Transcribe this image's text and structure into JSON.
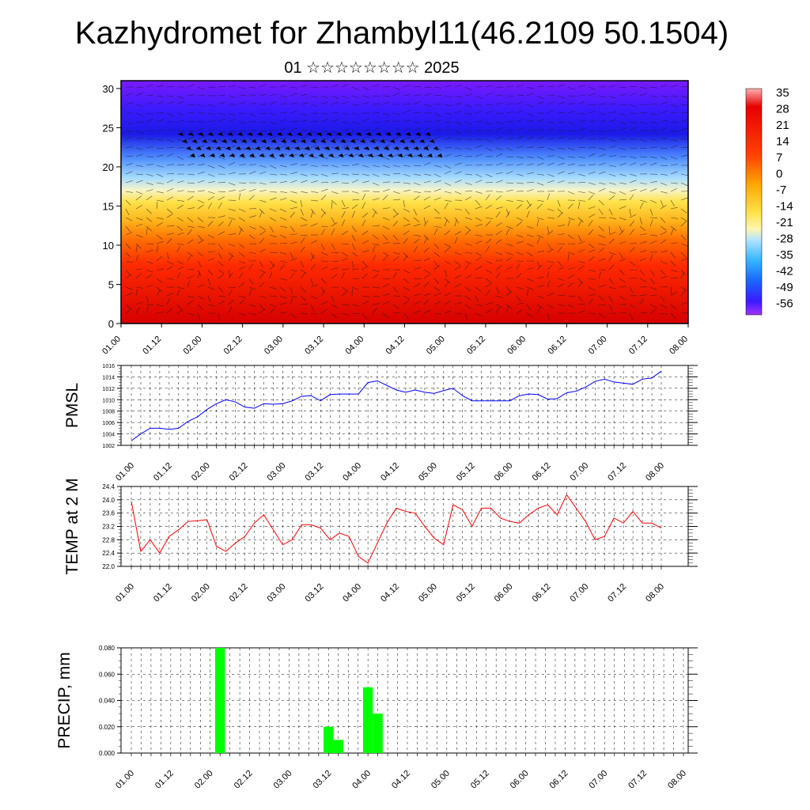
{
  "title": "Kazhydromet for Zhambyl11(46.2109 50.1504)",
  "subtitle": "01 ☆☆☆☆☆☆☆☆ 2025",
  "chart_data": [
    {
      "type": "heatmap",
      "name": "temperature cross-section with wind barbs",
      "x_ticks": [
        "01.00",
        "01.12",
        "02.00",
        "02.12",
        "03.00",
        "03.12",
        "04.00",
        "04.12",
        "05.00",
        "05.12",
        "06.00",
        "06.12",
        "07.00",
        "07.12",
        "08.00"
      ],
      "y_ticks": [
        "0",
        "5",
        "10",
        "15",
        "20",
        "25",
        "30"
      ],
      "ylim": [
        0,
        31
      ],
      "colorbar_labels": [
        "35",
        "28",
        "21",
        "14",
        "7",
        "0",
        "-7",
        "-14",
        "-21",
        "-28",
        "-35",
        "-42",
        "-49",
        "-56"
      ],
      "colors": {
        "warm": "#e60000",
        "mid": "#ffe24a",
        "cool": "#9fd8ff",
        "cold": "#1a1aff",
        "top": "#7a1aff"
      }
    },
    {
      "type": "line",
      "ylabel": "PMSL",
      "ylim": [
        1002,
        1016
      ],
      "y_ticks": [
        "1002",
        "1004",
        "1006",
        "1008",
        "1010",
        "1012",
        "1014",
        "1016"
      ],
      "x_ticks": [
        "01.00",
        "01.12",
        "02.00",
        "02.12",
        "03.00",
        "03.12",
        "04.00",
        "04.12",
        "05.00",
        "05.12",
        "06.00",
        "06.12",
        "07.00",
        "07.12",
        "08.00"
      ],
      "line_color": "#0000ff",
      "values": [
        1002.8,
        1004.0,
        1005.0,
        1005.0,
        1004.8,
        1005.0,
        1006.2,
        1007.0,
        1008.3,
        1009.3,
        1010.0,
        1009.6,
        1008.7,
        1008.5,
        1009.3,
        1009.2,
        1009.3,
        1009.8,
        1010.6,
        1010.7,
        1009.8,
        1010.9,
        1011.0,
        1011.0,
        1011.0,
        1013.0,
        1013.3,
        1012.5,
        1011.7,
        1011.3,
        1011.7,
        1011.3,
        1011.1,
        1011.6,
        1012.0,
        1010.7,
        1009.8,
        1009.8,
        1009.8,
        1009.8,
        1009.8,
        1010.7,
        1011.0,
        1010.9,
        1010.1,
        1010.2,
        1011.2,
        1011.5,
        1012.2,
        1013.2,
        1013.6,
        1013.1,
        1012.9,
        1012.7,
        1013.6,
        1013.8,
        1015.0
      ]
    },
    {
      "type": "line",
      "ylabel": "TEMP at 2 M",
      "ylim": [
        22.0,
        24.4
      ],
      "y_ticks": [
        "22.0",
        "22.4",
        "22.8",
        "23.2",
        "23.6",
        "24.0",
        "24.4"
      ],
      "x_ticks": [
        "01.00",
        "01.12",
        "02.00",
        "02.12",
        "03.00",
        "03.12",
        "04.00",
        "04.12",
        "05.00",
        "05.12",
        "06.00",
        "06.12",
        "07.00",
        "07.12",
        "08.00"
      ],
      "line_color": "#ff0000",
      "values": [
        23.95,
        22.45,
        22.8,
        22.4,
        22.9,
        23.1,
        23.35,
        23.37,
        23.4,
        22.6,
        22.45,
        22.7,
        22.9,
        23.3,
        23.55,
        23.1,
        22.65,
        22.8,
        23.25,
        23.25,
        23.15,
        22.8,
        23.0,
        22.9,
        22.3,
        22.1,
        22.7,
        23.3,
        23.75,
        23.65,
        23.6,
        23.2,
        22.85,
        22.65,
        23.85,
        23.7,
        23.2,
        23.75,
        23.75,
        23.45,
        23.35,
        23.3,
        23.55,
        23.75,
        23.85,
        23.55,
        24.15,
        23.75,
        23.35,
        22.8,
        22.9,
        23.45,
        23.3,
        23.65,
        23.3,
        23.3,
        23.15
      ]
    },
    {
      "type": "bar",
      "ylabel": "PRECIP, mm",
      "ylim": [
        0,
        0.08
      ],
      "y_ticks": [
        "0.000",
        "0.020",
        "0.040",
        "0.060",
        "0.080"
      ],
      "x_ticks": [
        "01.00",
        "01.12",
        "02.00",
        "02.12",
        "03.00",
        "03.12",
        "04.00",
        "04.12",
        "05.00",
        "05.12",
        "06.00",
        "06.12",
        "07.00",
        "07.12",
        "08.00"
      ],
      "bar_color": "#00ff00",
      "bars": [
        {
          "x": "02.03",
          "value": 0.08
        },
        {
          "x": "03.12",
          "value": 0.02
        },
        {
          "x": "03.15",
          "value": 0.01
        },
        {
          "x": "04.00",
          "value": 0.05
        },
        {
          "x": "04.03",
          "value": 0.03
        }
      ]
    }
  ]
}
